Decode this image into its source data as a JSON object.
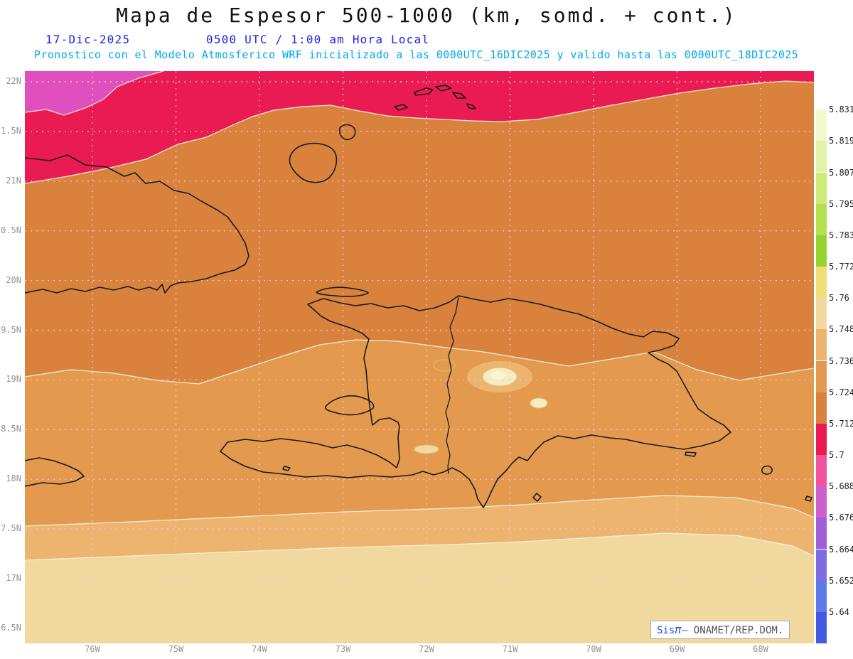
{
  "header": {
    "title": "Mapa de Espesor 500-1000 (km, somd. + cont.)",
    "date": "17-Dic-2025",
    "time_local": "0500 UTC / 1:00 am Hora Local",
    "forecast_line": "Pronostico con el Modelo Atmosferico WRF inicializado a las 0000UTC_16DIC2025 y valido hasta las  0000UTC_18DIC2025"
  },
  "map": {
    "y_ticks": [
      "22N",
      "1.5N",
      "21N",
      "0.5N",
      "20N",
      "9.5N",
      "19N",
      "8.5N",
      "18N",
      "7.5N",
      "17N",
      "6.5N"
    ],
    "x_ticks": [
      "76W",
      "75W",
      "74W",
      "73W",
      "72W",
      "71W",
      "70W",
      "69W",
      "68W"
    ],
    "bands": {
      "magenta": "#df4fbe",
      "red": "#ea1a52",
      "dark_orange": "#d8823e",
      "orange": "#e39a4e",
      "light_orange": "#ecb46e",
      "wheat": "#f1d89f",
      "pale_spot": "#f6ecc2",
      "pale_spot_inner": "#faf3d8"
    }
  },
  "colorbar": {
    "labels": [
      "5.831",
      "5.819",
      "5.807",
      "5.795",
      "5.783",
      "5.772",
      "5.76",
      "5.748",
      "5.736",
      "5.724",
      "5.712",
      "5.7",
      "5.688",
      "5.676",
      "5.664",
      "5.652",
      "5.64"
    ],
    "segment_colors": [
      "#ffffff",
      "#f1f9cf",
      "#e2f2a6",
      "#cdeb77",
      "#b2e04f",
      "#93d32f",
      "#f2dd74",
      "#f1d89f",
      "#ecb46e",
      "#e39a4e",
      "#d8823e",
      "#ea1a52",
      "#f1539f",
      "#cf5ece",
      "#a15ed8",
      "#7f6ce2",
      "#5e7ae8",
      "#4459de"
    ]
  },
  "watermark": {
    "brand": "Sis",
    "pi": "π",
    "text": "– ONAMET/REP.DOM."
  },
  "colors": {
    "title": "#111111",
    "date_blue": "#2121e8",
    "forecast_cyan": "#00a8ec",
    "axis_label": "#929292",
    "grid": "#ffc2cf",
    "coast": "#1a1a1a",
    "contour": "#f7eed9",
    "pale_ring": "#e0bd78",
    "colorbar_label": "#222222",
    "watermark_blue": "#1a56e0",
    "watermark_gray": "#555555"
  }
}
